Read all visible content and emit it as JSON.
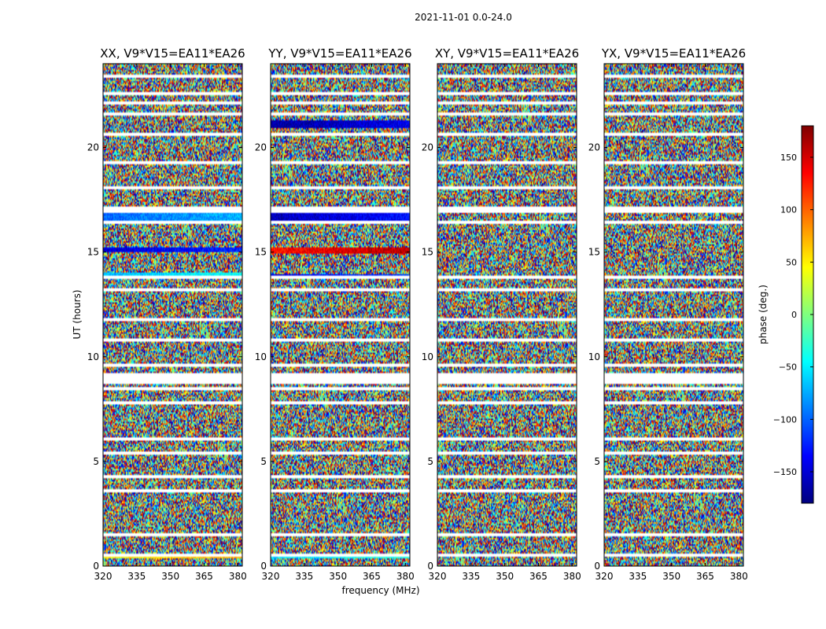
{
  "figure": {
    "suptitle": "2021-11-01 0.0-24.0"
  },
  "chart_data": {
    "type": "heatmap",
    "panels": [
      {
        "title": "XX, V9*V15=EA11*EA26"
      },
      {
        "title": "YY, V9*V15=EA11*EA26"
      },
      {
        "title": "XY, V9*V15=EA11*EA26"
      },
      {
        "title": "YX, V9*V15=EA11*EA26"
      }
    ],
    "xlabel": "frequency (MHz)",
    "ylabel": "UT (hours)",
    "xlim": [
      320,
      382
    ],
    "ylim": [
      0,
      24
    ],
    "xticks": [
      320,
      335,
      350,
      365,
      380
    ],
    "yticks": [
      0,
      5,
      10,
      15,
      20
    ],
    "colorbar": {
      "label": "phase (deg.)",
      "range": [
        -180,
        180
      ],
      "ticks": [
        -150,
        -100,
        -50,
        0,
        50,
        100,
        150
      ],
      "ticklabels": [
        "−150",
        "−100",
        "−50",
        "0",
        "50",
        "100",
        "150"
      ],
      "colormap": [
        "#00007f",
        "#0000ff",
        "#007fff",
        "#00ffff",
        "#7fff7f",
        "#ffff00",
        "#ff7f00",
        "#ff0000",
        "#7f0000"
      ]
    },
    "flagged_ut_rows_hours": [
      0.5,
      1.5,
      3.6,
      4.3,
      5.4,
      6.1,
      7.8,
      8.5,
      9.0,
      9.6,
      10.8,
      11.8,
      13.2,
      13.8,
      16.4,
      17.1,
      18.1,
      19.3,
      20.6,
      21.6,
      22.6,
      23.4
    ],
    "coherent_segments": [
      {
        "panel": 0,
        "ut_range": [
          0.4,
          0.55
        ],
        "phase": 45
      },
      {
        "panel": 0,
        "ut_range": [
          16.45,
          16.85
        ],
        "phase": -100
      },
      {
        "panel": 0,
        "ut_range": [
          13.9,
          14.05
        ],
        "phase": -70
      },
      {
        "panel": 0,
        "ut_range": [
          15.0,
          15.2
        ],
        "phase": -150
      },
      {
        "panel": 1,
        "ut_range": [
          0.4,
          0.6
        ],
        "phase": -60
      },
      {
        "panel": 1,
        "ut_range": [
          16.45,
          16.85
        ],
        "phase": -160
      },
      {
        "panel": 1,
        "ut_range": [
          14.95,
          15.2
        ],
        "phase": 130
      },
      {
        "panel": 1,
        "ut_range": [
          20.9,
          21.3
        ],
        "phase": -170
      },
      {
        "panel": 1,
        "ut_range": [
          13.7,
          13.95
        ],
        "phase": -140
      }
    ]
  }
}
